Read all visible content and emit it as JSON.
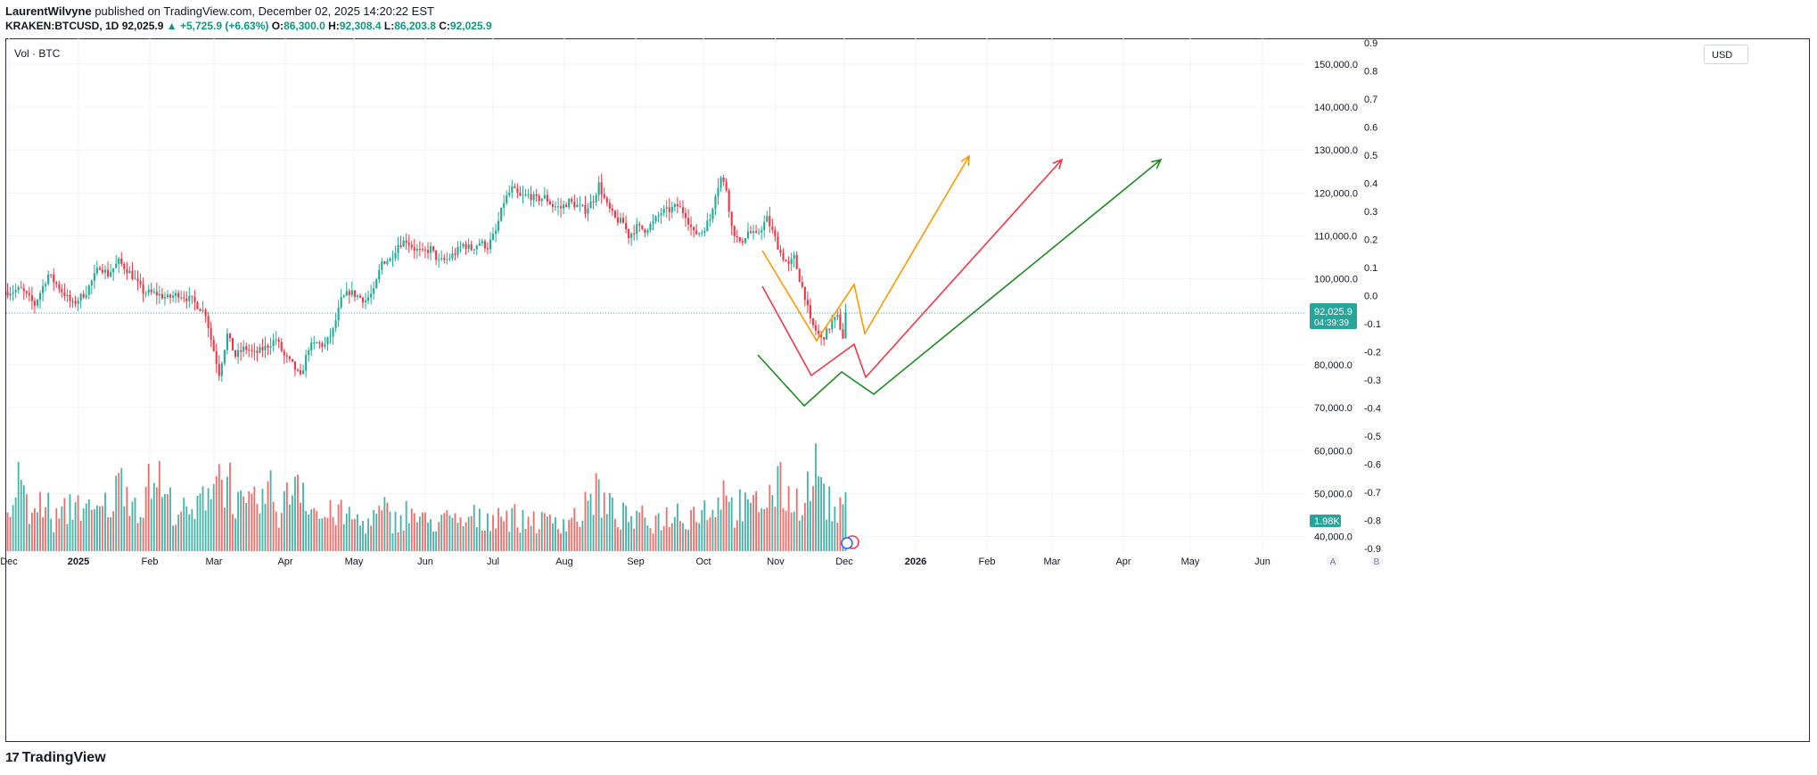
{
  "header": {
    "author": "LaurentWilvyne",
    "published": "published on TradingView.com, December 02, 2025 14:20:22 EST",
    "symbol": "KRAKEN:BTCUSD, 1D",
    "last": "92,025.9",
    "change": "▲ +5,725.9 (+6.63%)",
    "o_label": "O:",
    "o": "86,300.0",
    "h_label": "H:",
    "h": "92,308.4",
    "l_label": "L:",
    "l": "86,203.8",
    "c_label": "C:",
    "c": "92,025.9"
  },
  "indicator_label": "Vol · BTC",
  "currency": "USD",
  "price_tag": {
    "price": "92,025.9",
    "countdown": "04:39:39"
  },
  "volume_tag": "1.98K",
  "bottom_buttons": [
    "A",
    "B"
  ],
  "footer": {
    "logo": "17",
    "brand": "TradingView"
  },
  "colors": {
    "up": "#26a69a",
    "down": "#ef5350",
    "up_body": "#22ab94",
    "down_body": "#f23645",
    "orange": "#ff9800",
    "red": "#f23645",
    "green": "#1b8a1f",
    "grid": "#f0f3fa"
  },
  "chart_data": {
    "type": "candlestick",
    "price_axis_ticks": [
      "150,000.0",
      "140,000.0",
      "130,000.0",
      "120,000.0",
      "110,000.0",
      "100,000.0",
      "80,000.0",
      "70,000.0",
      "60,000.0",
      "50,000.0",
      "40,000.0"
    ],
    "price_axis_values": [
      150000,
      140000,
      130000,
      120000,
      110000,
      100000,
      80000,
      70000,
      60000,
      50000,
      40000
    ],
    "oscillator_ticks": [
      "0.9",
      "0.8",
      "0.7",
      "0.6",
      "0.5",
      "0.4",
      "0.3",
      "0.2",
      "0.1",
      "0.0",
      "-0.1",
      "-0.2",
      "-0.3",
      "-0.4",
      "-0.5",
      "-0.6",
      "-0.7",
      "-0.8",
      "-0.9"
    ],
    "time_axis": [
      "Dec",
      "2025",
      "Feb",
      "Mar",
      "Apr",
      "May",
      "Jun",
      "Jul",
      "Aug",
      "Sep",
      "Oct",
      "Nov",
      "Dec",
      "2026",
      "Feb",
      "Mar",
      "Apr",
      "May",
      "Jun"
    ],
    "ylim": [
      37000,
      156000
    ],
    "current_price": 92025.9,
    "price_path": [
      [
        0,
        97000
      ],
      [
        10,
        97500
      ],
      [
        20,
        94000
      ],
      [
        30,
        101000
      ],
      [
        38,
        98000
      ],
      [
        48,
        94000
      ],
      [
        58,
        97000
      ],
      [
        68,
        103000
      ],
      [
        74,
        101000
      ],
      [
        82,
        104000
      ],
      [
        90,
        101500
      ],
      [
        100,
        97000
      ],
      [
        110,
        96500
      ],
      [
        118,
        95500
      ],
      [
        126,
        96500
      ],
      [
        136,
        95000
      ],
      [
        146,
        92000
      ],
      [
        150,
        86000
      ],
      [
        156,
        78000
      ],
      [
        162,
        87000
      ],
      [
        168,
        82000
      ],
      [
        175,
        84000
      ],
      [
        182,
        82500
      ],
      [
        190,
        84000
      ],
      [
        198,
        86000
      ],
      [
        204,
        82000
      ],
      [
        210,
        80000
      ],
      [
        216,
        77000
      ],
      [
        222,
        84000
      ],
      [
        228,
        85000
      ],
      [
        234,
        84500
      ],
      [
        240,
        88000
      ],
      [
        246,
        95000
      ],
      [
        252,
        97000
      ],
      [
        258,
        96000
      ],
      [
        264,
        95000
      ],
      [
        270,
        97000
      ],
      [
        276,
        104000
      ],
      [
        282,
        104500
      ],
      [
        288,
        108000
      ],
      [
        294,
        109000
      ],
      [
        300,
        107000
      ],
      [
        306,
        106000
      ],
      [
        312,
        107000
      ],
      [
        318,
        104000
      ],
      [
        324,
        104500
      ],
      [
        330,
        106000
      ],
      [
        336,
        108000
      ],
      [
        342,
        107000
      ],
      [
        348,
        108500
      ],
      [
        354,
        107500
      ],
      [
        360,
        111000
      ],
      [
        366,
        118000
      ],
      [
        372,
        121000
      ],
      [
        378,
        119000
      ],
      [
        384,
        119500
      ],
      [
        390,
        118500
      ],
      [
        396,
        119000
      ],
      [
        402,
        117000
      ],
      [
        408,
        116500
      ],
      [
        414,
        118000
      ],
      [
        420,
        117000
      ],
      [
        426,
        116000
      ],
      [
        432,
        118500
      ],
      [
        436,
        122000
      ],
      [
        442,
        117000
      ],
      [
        448,
        114000
      ],
      [
        454,
        113000
      ],
      [
        458,
        110000
      ],
      [
        464,
        112000
      ],
      [
        470,
        111500
      ],
      [
        476,
        113000
      ],
      [
        482,
        115500
      ],
      [
        488,
        116000
      ],
      [
        494,
        117000
      ],
      [
        500,
        115000
      ],
      [
        506,
        110500
      ],
      [
        512,
        111000
      ],
      [
        518,
        114000
      ],
      [
        522,
        120000
      ],
      [
        526,
        123500
      ],
      [
        530,
        121000
      ],
      [
        534,
        112000
      ],
      [
        540,
        108000
      ],
      [
        546,
        111000
      ],
      [
        552,
        110000
      ],
      [
        556,
        112000
      ],
      [
        560,
        114000
      ],
      [
        564,
        111000
      ],
      [
        570,
        106000
      ],
      [
        576,
        103000
      ],
      [
        580,
        105000
      ],
      [
        584,
        100000
      ],
      [
        588,
        96000
      ],
      [
        592,
        90000
      ],
      [
        596,
        88000
      ],
      [
        600,
        86000
      ],
      [
        604,
        87500
      ],
      [
        608,
        90000
      ],
      [
        612,
        91000
      ],
      [
        616,
        86500
      ],
      [
        618,
        92000
      ]
    ],
    "volume_path": [
      [
        0,
        0.25
      ],
      [
        4,
        0.3
      ],
      [
        8,
        0.9
      ],
      [
        12,
        0.45
      ],
      [
        16,
        0.3
      ],
      [
        20,
        0.35
      ],
      [
        24,
        0.4
      ],
      [
        28,
        0.5
      ],
      [
        32,
        0.25
      ],
      [
        38,
        0.3
      ],
      [
        44,
        0.35
      ],
      [
        50,
        0.45
      ],
      [
        56,
        0.4
      ],
      [
        62,
        0.3
      ],
      [
        68,
        0.35
      ],
      [
        74,
        0.4
      ],
      [
        80,
        0.5
      ],
      [
        86,
        0.7
      ],
      [
        92,
        0.45
      ],
      [
        98,
        0.4
      ],
      [
        104,
        0.55
      ],
      [
        110,
        0.7
      ],
      [
        116,
        0.45
      ],
      [
        122,
        0.4
      ],
      [
        128,
        0.35
      ],
      [
        134,
        0.3
      ],
      [
        140,
        0.35
      ],
      [
        146,
        0.55
      ],
      [
        152,
        0.7
      ],
      [
        158,
        0.65
      ],
      [
        164,
        0.6
      ],
      [
        170,
        0.4
      ],
      [
        176,
        0.35
      ],
      [
        182,
        0.4
      ],
      [
        188,
        0.45
      ],
      [
        194,
        0.5
      ],
      [
        200,
        0.35
      ],
      [
        206,
        0.45
      ],
      [
        212,
        0.7
      ],
      [
        218,
        0.6
      ],
      [
        224,
        0.4
      ],
      [
        230,
        0.3
      ],
      [
        236,
        0.3
      ],
      [
        242,
        0.35
      ],
      [
        248,
        0.3
      ],
      [
        254,
        0.3
      ],
      [
        260,
        0.25
      ],
      [
        266,
        0.25
      ],
      [
        272,
        0.3
      ],
      [
        278,
        0.35
      ],
      [
        284,
        0.25
      ],
      [
        290,
        0.3
      ],
      [
        296,
        0.35
      ],
      [
        302,
        0.3
      ],
      [
        308,
        0.25
      ],
      [
        314,
        0.25
      ],
      [
        320,
        0.3
      ],
      [
        326,
        0.25
      ],
      [
        332,
        0.25
      ],
      [
        338,
        0.25
      ],
      [
        344,
        0.3
      ],
      [
        350,
        0.25
      ],
      [
        356,
        0.3
      ],
      [
        362,
        0.35
      ],
      [
        368,
        0.3
      ],
      [
        374,
        0.3
      ],
      [
        380,
        0.25
      ],
      [
        386,
        0.3
      ],
      [
        392,
        0.25
      ],
      [
        398,
        0.25
      ],
      [
        404,
        0.3
      ],
      [
        410,
        0.25
      ],
      [
        416,
        0.3
      ],
      [
        422,
        0.3
      ],
      [
        428,
        0.4
      ],
      [
        434,
        0.55
      ],
      [
        440,
        0.4
      ],
      [
        446,
        0.35
      ],
      [
        452,
        0.3
      ],
      [
        458,
        0.3
      ],
      [
        464,
        0.25
      ],
      [
        470,
        0.3
      ],
      [
        476,
        0.25
      ],
      [
        482,
        0.3
      ],
      [
        488,
        0.3
      ],
      [
        494,
        0.35
      ],
      [
        500,
        0.3
      ],
      [
        506,
        0.35
      ],
      [
        512,
        0.35
      ],
      [
        518,
        0.4
      ],
      [
        524,
        0.4
      ],
      [
        528,
        0.75
      ],
      [
        532,
        0.4
      ],
      [
        536,
        0.35
      ],
      [
        540,
        0.4
      ],
      [
        546,
        0.35
      ],
      [
        552,
        0.4
      ],
      [
        558,
        0.45
      ],
      [
        564,
        0.5
      ],
      [
        570,
        0.55
      ],
      [
        576,
        0.5
      ],
      [
        580,
        0.4
      ],
      [
        586,
        0.5
      ],
      [
        590,
        0.55
      ],
      [
        594,
        0.6
      ],
      [
        598,
        0.8
      ],
      [
        602,
        0.5
      ],
      [
        606,
        0.4
      ],
      [
        612,
        0.3
      ],
      [
        618,
        0.4
      ]
    ],
    "projections": [
      {
        "color": "orange",
        "points": [
          [
            855,
            281
          ],
          [
            916,
            382
          ],
          [
            958,
            319
          ],
          [
            970,
            374
          ],
          [
            1087,
            175
          ]
        ]
      },
      {
        "color": "red",
        "points": [
          [
            855,
            321
          ],
          [
            910,
            421
          ],
          [
            958,
            386
          ],
          [
            971,
            423
          ],
          [
            1191,
            179
          ]
        ]
      },
      {
        "color": "green",
        "points": [
          [
            850,
            398
          ],
          [
            902,
            455
          ],
          [
            944,
            417
          ],
          [
            980,
            442
          ],
          [
            1302,
            179
          ]
        ]
      }
    ]
  }
}
